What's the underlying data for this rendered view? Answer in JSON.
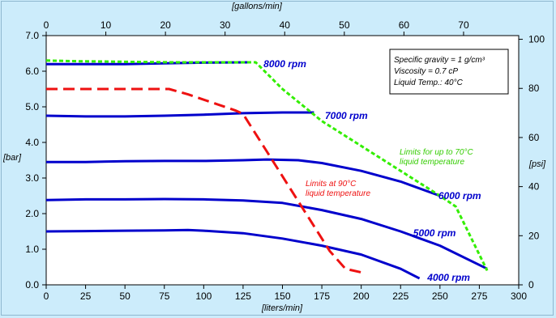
{
  "chart_data": {
    "type": "line",
    "title": "",
    "axes": {
      "x_bottom": {
        "label": "[liters/min]",
        "range": [
          0,
          300
        ],
        "ticks": [
          0,
          25,
          50,
          75,
          100,
          125,
          150,
          175,
          200,
          225,
          250,
          275,
          300
        ]
      },
      "x_top": {
        "label": "[gallons/min]",
        "range": [
          0,
          79.25
        ],
        "ticks": [
          0,
          10,
          20,
          30,
          40,
          50,
          60,
          70
        ]
      },
      "y_left": {
        "label": "[bar]",
        "range": [
          0,
          7
        ],
        "ticks": [
          "0.0",
          "1.0",
          "2.0",
          "3.0",
          "4.0",
          "5.0",
          "6.0",
          "7.0"
        ]
      },
      "y_right": {
        "label": "[psi]",
        "range": [
          0,
          101.5
        ],
        "ticks": [
          0,
          20,
          40,
          60,
          80,
          100
        ]
      }
    },
    "grid": false,
    "colors": {
      "background": "#ccecfb",
      "plot_background": "#ffffff",
      "curve": "#0000cc",
      "limit_90": "#ee1111",
      "limit_70": "#33ee00"
    },
    "series": [
      {
        "name": "8000 rpm",
        "color": "#0000cc",
        "style": "solid",
        "x": [
          0,
          25,
          50,
          75,
          100,
          130
        ],
        "y": [
          6.2,
          6.2,
          6.2,
          6.22,
          6.24,
          6.25
        ]
      },
      {
        "name": "7000 rpm",
        "color": "#0000cc",
        "style": "solid",
        "x": [
          0,
          25,
          50,
          75,
          100,
          125,
          150,
          170
        ],
        "y": [
          4.75,
          4.73,
          4.73,
          4.75,
          4.78,
          4.82,
          4.84,
          4.84
        ]
      },
      {
        "name": "6000 rpm",
        "color": "#0000cc",
        "style": "solid",
        "x": [
          0,
          25,
          50,
          75,
          100,
          125,
          140,
          160,
          175,
          200,
          225,
          250
        ],
        "y": [
          3.45,
          3.45,
          3.47,
          3.48,
          3.48,
          3.5,
          3.52,
          3.5,
          3.42,
          3.2,
          2.9,
          2.5
        ]
      },
      {
        "name": "5000 rpm",
        "color": "#0000cc",
        "style": "solid",
        "x": [
          0,
          25,
          50,
          75,
          100,
          125,
          150,
          175,
          200,
          225,
          250,
          280
        ],
        "y": [
          2.38,
          2.4,
          2.4,
          2.41,
          2.4,
          2.37,
          2.3,
          2.1,
          1.85,
          1.5,
          1.1,
          0.45
        ]
      },
      {
        "name": "4000 rpm",
        "color": "#0000cc",
        "style": "solid",
        "x": [
          0,
          25,
          50,
          75,
          90,
          100,
          125,
          150,
          175,
          200,
          225,
          237
        ],
        "y": [
          1.5,
          1.51,
          1.52,
          1.53,
          1.54,
          1.52,
          1.45,
          1.3,
          1.1,
          0.85,
          0.45,
          0.18
        ]
      },
      {
        "name": "Limits at 90°C liquid temperature",
        "color": "#ee1111",
        "style": "dash",
        "x": [
          0,
          10,
          20,
          30,
          40,
          50,
          60,
          70,
          78,
          90,
          100,
          110,
          120,
          125,
          130,
          140,
          150,
          160,
          170,
          180,
          190,
          200
        ],
        "y": [
          5.5,
          5.5,
          5.5,
          5.5,
          5.5,
          5.5,
          5.5,
          5.5,
          5.5,
          5.35,
          5.2,
          5.05,
          4.9,
          4.8,
          4.45,
          3.75,
          3.05,
          2.35,
          1.65,
          0.95,
          0.45,
          0.35
        ]
      },
      {
        "name": "Limits for up to 70°C liquid temperature",
        "color": "#33ee00",
        "style": "dot",
        "x": [
          0,
          20,
          40,
          60,
          80,
          100,
          120,
          133,
          150,
          175,
          200,
          225,
          250,
          260,
          270,
          280
        ],
        "y": [
          6.3,
          6.28,
          6.27,
          6.26,
          6.25,
          6.25,
          6.25,
          6.25,
          5.5,
          4.6,
          3.9,
          3.2,
          2.5,
          2.2,
          1.3,
          0.4
        ]
      }
    ],
    "labels": [
      {
        "text": "8000 rpm",
        "color": "#0000cc",
        "kind": "rpm"
      },
      {
        "text": "7000 rpm",
        "color": "#0000cc",
        "kind": "rpm"
      },
      {
        "text": "6000 rpm",
        "color": "#0000cc",
        "kind": "rpm"
      },
      {
        "text": "5000 rpm",
        "color": "#0000cc",
        "kind": "rpm"
      },
      {
        "text": "4000 rpm",
        "color": "#0000cc",
        "kind": "rpm"
      }
    ],
    "annotations": {
      "limit90_line1": "Limits at 90°C",
      "limit90_line2": "liquid temperature",
      "limit70_line1": "Limits  for up to 70°C",
      "limit70_line2": "liquid temperature"
    },
    "info_box": {
      "line1": "Specific gravity = 1 g/cm³",
      "line2": "Viscosity = 0.7 cP",
      "line3": "Liquid Temp.: 40°C"
    }
  }
}
